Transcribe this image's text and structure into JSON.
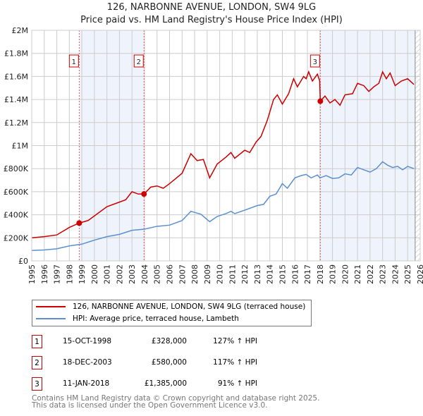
{
  "title": "126, NARBONNE AVENUE, LONDON, SW4 9LG",
  "subtitle": "Price paid vs. HM Land Registry's House Price Index (HPI)",
  "chart_data": {
    "type": "line",
    "title": "126, NARBONNE AVENUE, LONDON, SW4 9LG",
    "subtitle": "Price paid vs. HM Land Registry's House Price Index (HPI)",
    "xlim": [
      1995,
      2026
    ],
    "ylim": [
      0,
      2000000
    ],
    "x_ticks": [
      "1995",
      "1996",
      "1997",
      "1998",
      "1999",
      "2000",
      "2001",
      "2002",
      "2003",
      "2004",
      "2005",
      "2006",
      "2007",
      "2008",
      "2009",
      "2010",
      "2011",
      "2012",
      "2013",
      "2014",
      "2015",
      "2016",
      "2017",
      "2018",
      "2019",
      "2020",
      "2021",
      "2022",
      "2023",
      "2024",
      "2025",
      "2026"
    ],
    "y_ticks": [
      {
        "v": 0,
        "l": "£0"
      },
      {
        "v": 200000,
        "l": "£200K"
      },
      {
        "v": 400000,
        "l": "£400K"
      },
      {
        "v": 600000,
        "l": "£600K"
      },
      {
        "v": 800000,
        "l": "£800K"
      },
      {
        "v": 1000000,
        "l": "£1M"
      },
      {
        "v": 1200000,
        "l": "£1.2M"
      },
      {
        "v": 1400000,
        "l": "£1.4M"
      },
      {
        "v": 1600000,
        "l": "£1.6M"
      },
      {
        "v": 1800000,
        "l": "£1.8M"
      },
      {
        "v": 2000000,
        "l": "£2M"
      }
    ],
    "grid": true,
    "colors": {
      "property": "#cc0000",
      "hpi": "#5b8fd0",
      "shade": "#eef3fc"
    },
    "series": [
      {
        "name": "126, NARBONNE AVENUE, LONDON, SW4 9LG (terraced house)",
        "x": [
          1995,
          1996,
          1997,
          1998,
          1998.79,
          1999.5,
          2000,
          2001,
          2002,
          2002.5,
          2003,
          2003.5,
          2003.96,
          2004.5,
          2005,
          2005.5,
          2006,
          2007,
          2007.7,
          2008.2,
          2008.7,
          2009.2,
          2009.8,
          2010.5,
          2010.9,
          2011.2,
          2012,
          2012.4,
          2012.9,
          2013.3,
          2013.8,
          2014.3,
          2014.6,
          2015,
          2015.5,
          2015.9,
          2016.2,
          2016.7,
          2016.9,
          2017.1,
          2017.4,
          2017.8,
          2017.98,
          2018.03,
          2018.4,
          2018.8,
          2019.2,
          2019.6,
          2020,
          2020.6,
          2021,
          2021.5,
          2021.9,
          2022.3,
          2022.7,
          2023,
          2023.3,
          2023.6,
          2024,
          2024.5,
          2025,
          2025.5
        ],
        "y": [
          200000,
          210000,
          225000,
          290000,
          328000,
          350000,
          390000,
          470000,
          510000,
          530000,
          600000,
          580000,
          580000,
          640000,
          650000,
          630000,
          670000,
          760000,
          930000,
          870000,
          880000,
          720000,
          840000,
          900000,
          940000,
          890000,
          960000,
          940000,
          1030000,
          1080000,
          1220000,
          1400000,
          1440000,
          1360000,
          1450000,
          1580000,
          1510000,
          1600000,
          1580000,
          1640000,
          1560000,
          1620000,
          1560000,
          1385000,
          1430000,
          1370000,
          1400000,
          1350000,
          1440000,
          1450000,
          1540000,
          1520000,
          1470000,
          1510000,
          1540000,
          1640000,
          1580000,
          1630000,
          1520000,
          1560000,
          1580000,
          1530000
        ]
      },
      {
        "name": "HPI: Average price, terraced house, Lambeth",
        "x": [
          1995,
          1996,
          1997,
          1998,
          1999,
          2000,
          2001,
          2002,
          2003,
          2004,
          2005,
          2006,
          2007,
          2007.7,
          2008.5,
          2009.2,
          2009.8,
          2010.5,
          2010.9,
          2011.2,
          2012,
          2013,
          2013.5,
          2014,
          2014.5,
          2015,
          2015.4,
          2016,
          2016.5,
          2016.9,
          2017.3,
          2017.8,
          2018,
          2018.5,
          2019,
          2019.5,
          2020,
          2020.5,
          2021,
          2021.5,
          2022,
          2022.5,
          2023,
          2023.4,
          2023.8,
          2024.2,
          2024.6,
          2025,
          2025.5
        ],
        "y": [
          90000,
          95000,
          105000,
          130000,
          145000,
          180000,
          210000,
          230000,
          265000,
          275000,
          300000,
          310000,
          350000,
          430000,
          405000,
          340000,
          385000,
          410000,
          430000,
          410000,
          440000,
          480000,
          490000,
          560000,
          580000,
          670000,
          630000,
          720000,
          740000,
          750000,
          720000,
          745000,
          720000,
          740000,
          715000,
          720000,
          755000,
          745000,
          810000,
          790000,
          770000,
          800000,
          860000,
          830000,
          810000,
          820000,
          790000,
          820000,
          800000
        ]
      }
    ],
    "sales": [
      {
        "n": "1",
        "date": "15-OCT-1998",
        "x": 1998.79,
        "price": "£328,000",
        "value": 328000,
        "hpi": "127% ↑ HPI"
      },
      {
        "n": "2",
        "date": "18-DEC-2003",
        "x": 2003.96,
        "price": "£580,000",
        "value": 580000,
        "hpi": "117% ↑ HPI"
      },
      {
        "n": "3",
        "date": "11-JAN-2018",
        "x": 2018.03,
        "price": "£1,385,000",
        "value": 1385000,
        "hpi": "91% ↑ HPI"
      }
    ],
    "shaded_ranges": [
      [
        1998.79,
        2003.96
      ],
      [
        2018.03,
        2025.6
      ]
    ],
    "hatched_from": 2025.6
  },
  "legend": {
    "property": "126, NARBONNE AVENUE, LONDON, SW4 9LG (terraced house)",
    "hpi": "HPI: Average price, terraced house, Lambeth"
  },
  "footer": {
    "line1": "Contains HM Land Registry data © Crown copyright and database right 2025.",
    "line2": "This data is licensed under the Open Government Licence v3.0."
  }
}
